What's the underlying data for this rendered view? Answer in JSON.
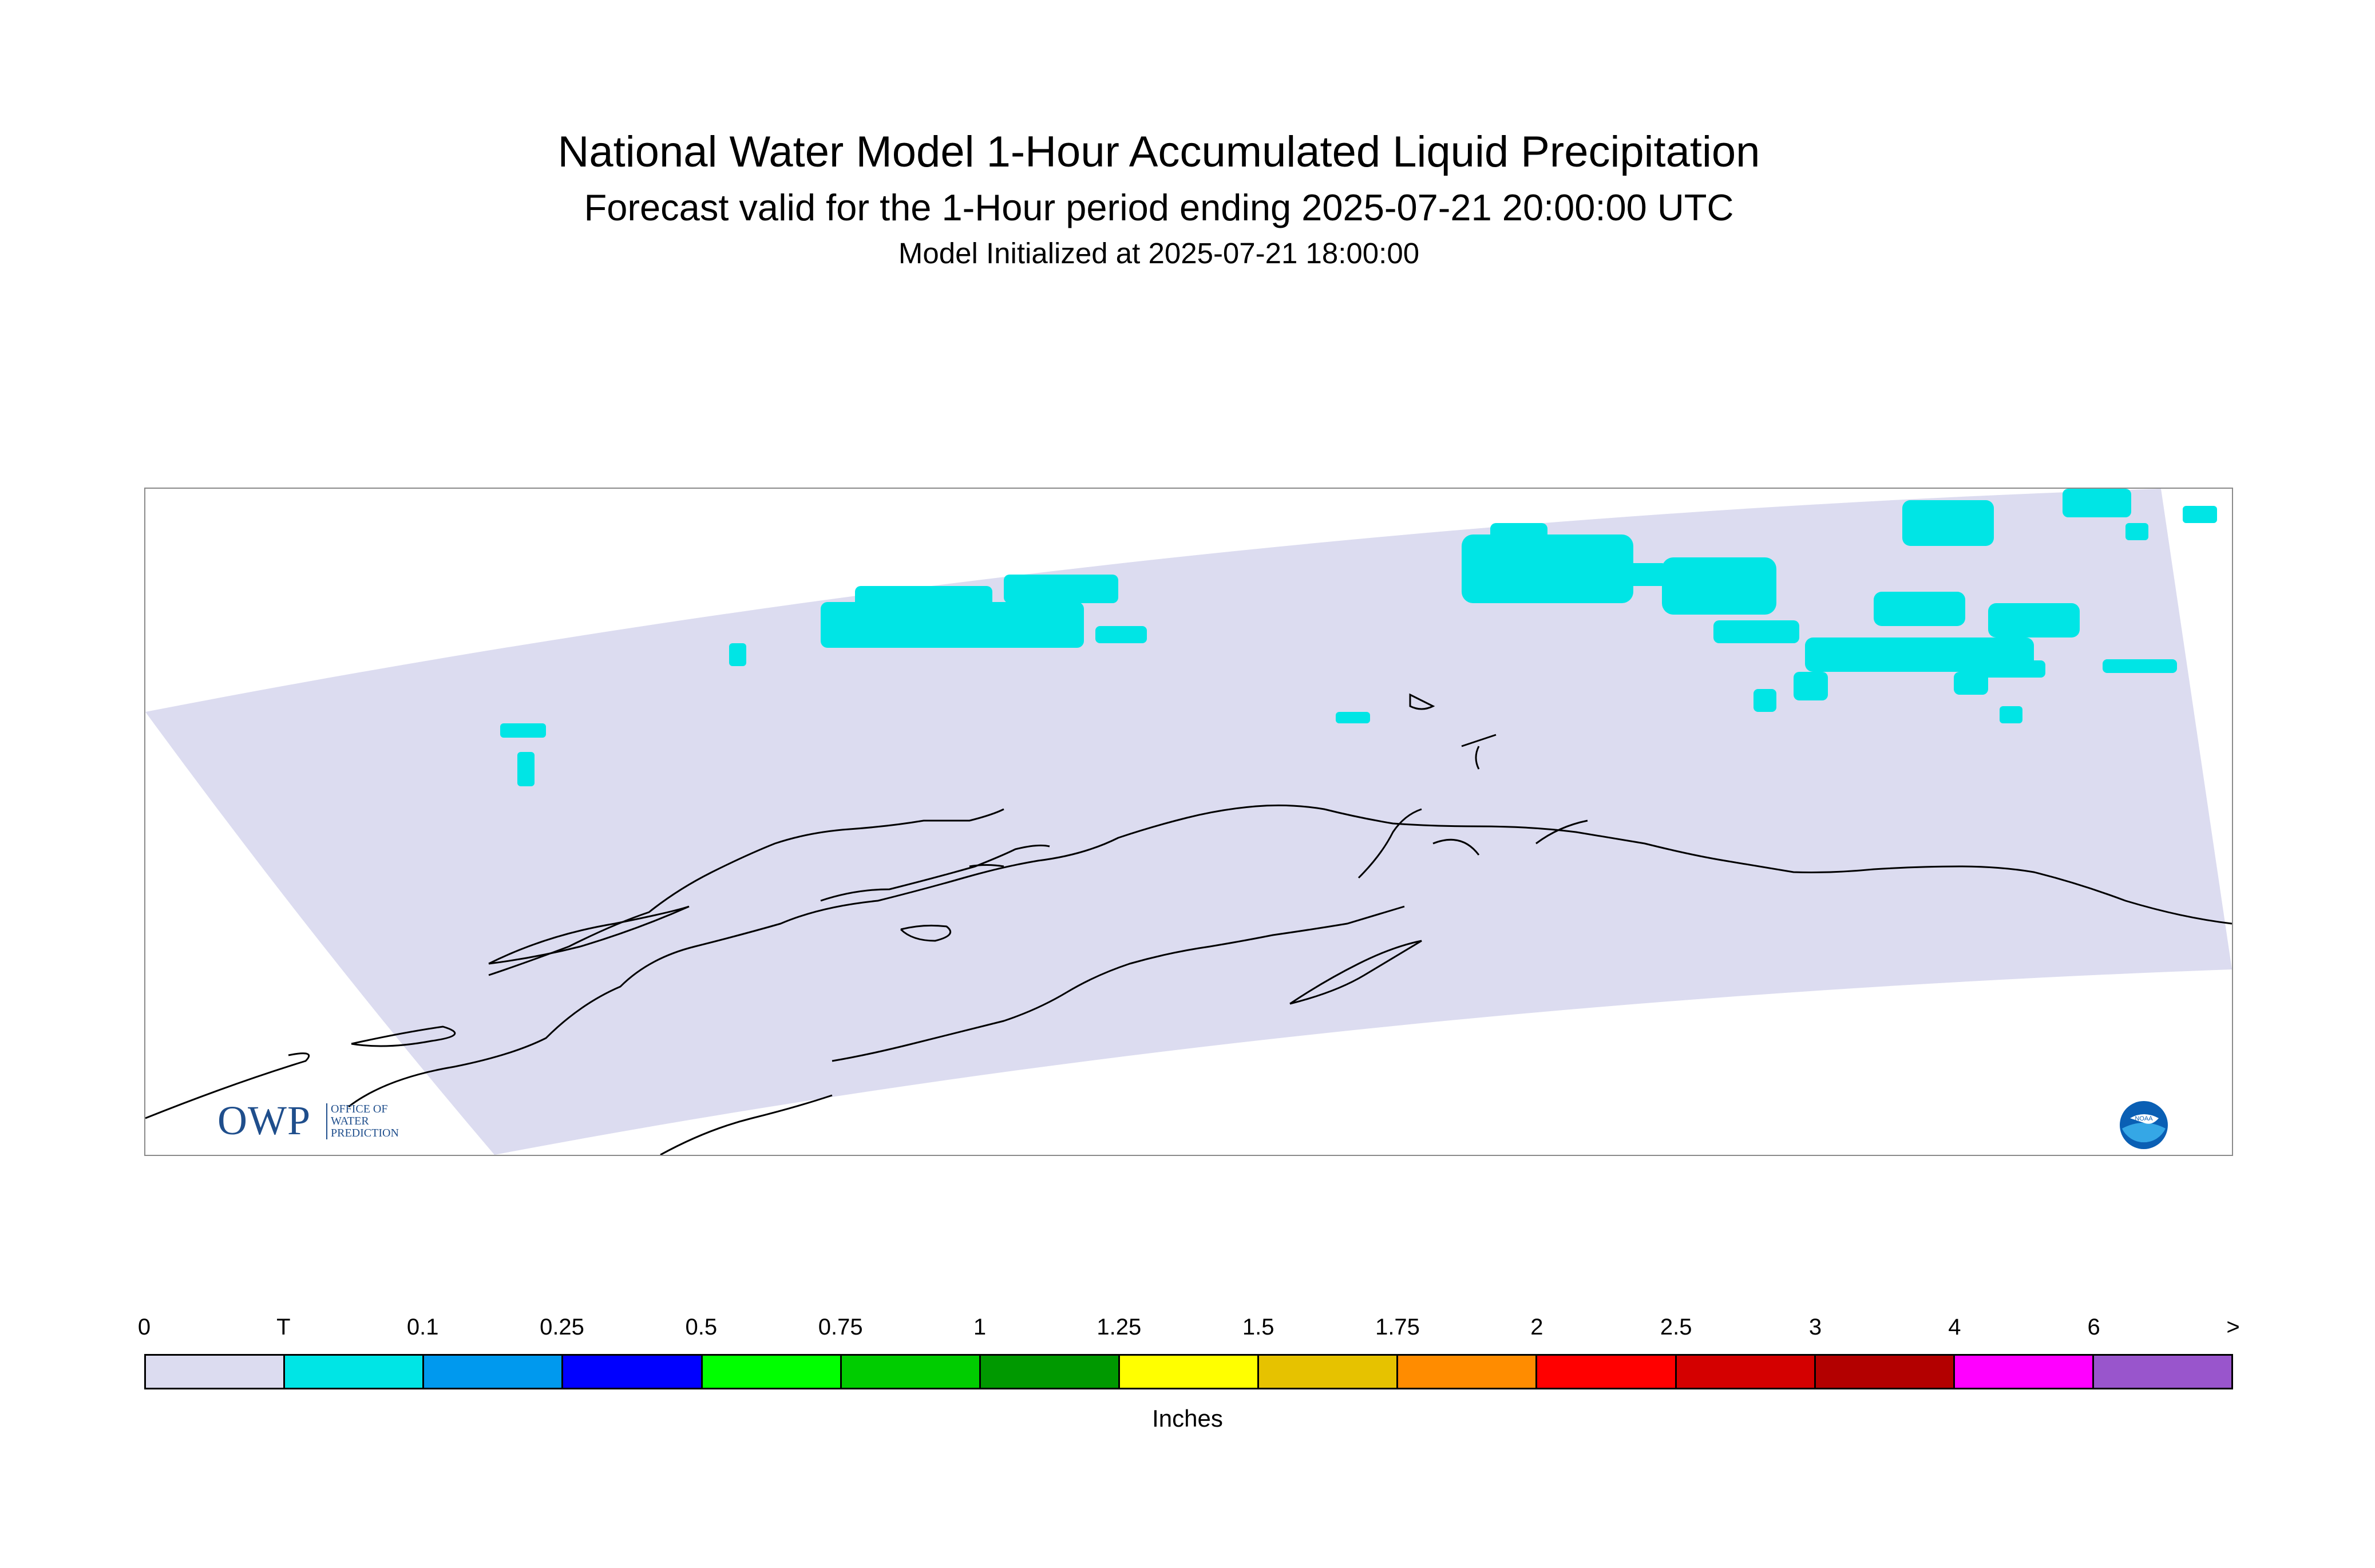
{
  "title": "National Water Model 1-Hour Accumulated Liquid Precipitation",
  "subtitle": "Forecast valid for the 1-Hour period ending 2025-07-21 20:00:00 UTC",
  "init_line": "Model Initialized at 2025-07-21 18:00:00",
  "map": {
    "domain_fill": "#dcdcf0",
    "precip_color": "#00e5e5",
    "coast_color": "#000000"
  },
  "logos": {
    "owp_letters": "OWP",
    "owp_sub": [
      "OFFICE OF",
      "WATER",
      "PREDICTION"
    ],
    "noaa_text": "NOAA"
  },
  "legend": {
    "ticks": [
      "0",
      "T",
      "0.1",
      "0.25",
      "0.5",
      "0.75",
      "1",
      "1.25",
      "1.5",
      "1.75",
      "2",
      "2.5",
      "3",
      "4",
      "6",
      ">"
    ],
    "colors": [
      "#dcdcf0",
      "#00e5e5",
      "#0099ee",
      "#0000ff",
      "#00ff00",
      "#00cc00",
      "#009900",
      "#ffff00",
      "#e6c200",
      "#ff8c00",
      "#ff0000",
      "#d40000",
      "#b30000",
      "#ff00ff",
      "#9955cc"
    ],
    "units": "Inches"
  }
}
